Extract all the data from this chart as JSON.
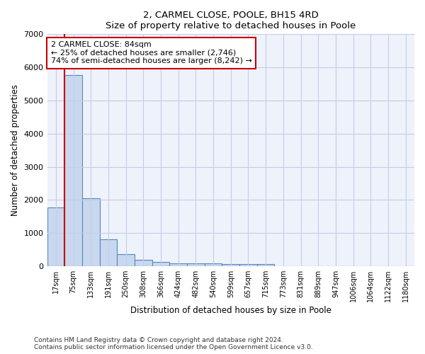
{
  "title": "2, CARMEL CLOSE, POOLE, BH15 4RD",
  "subtitle": "Size of property relative to detached houses in Poole",
  "xlabel": "Distribution of detached houses by size in Poole",
  "ylabel": "Number of detached properties",
  "categories": [
    "17sqm",
    "75sqm",
    "133sqm",
    "191sqm",
    "250sqm",
    "308sqm",
    "366sqm",
    "424sqm",
    "482sqm",
    "540sqm",
    "599sqm",
    "657sqm",
    "715sqm",
    "773sqm",
    "831sqm",
    "889sqm",
    "947sqm",
    "1006sqm",
    "1064sqm",
    "1122sqm",
    "1180sqm"
  ],
  "values": [
    1780,
    5760,
    2060,
    810,
    370,
    200,
    120,
    90,
    85,
    80,
    70,
    65,
    60,
    0,
    0,
    0,
    0,
    0,
    0,
    0,
    0
  ],
  "bar_color": "#c8d8ee",
  "bar_edge_color": "#5588bb",
  "annotation_text": "2 CARMEL CLOSE: 84sqm\n← 25% of detached houses are smaller (2,746)\n74% of semi-detached houses are larger (8,242) →",
  "annotation_box_color": "#ffffff",
  "annotation_box_edge": "#cc0000",
  "red_line_color": "#cc0000",
  "background_color": "#eef2fb",
  "grid_color": "#c5cde8",
  "ylim": [
    0,
    7000
  ],
  "yticks": [
    0,
    1000,
    2000,
    3000,
    4000,
    5000,
    6000,
    7000
  ],
  "footer1": "Contains HM Land Registry data © Crown copyright and database right 2024.",
  "footer2": "Contains public sector information licensed under the Open Government Licence v3.0."
}
